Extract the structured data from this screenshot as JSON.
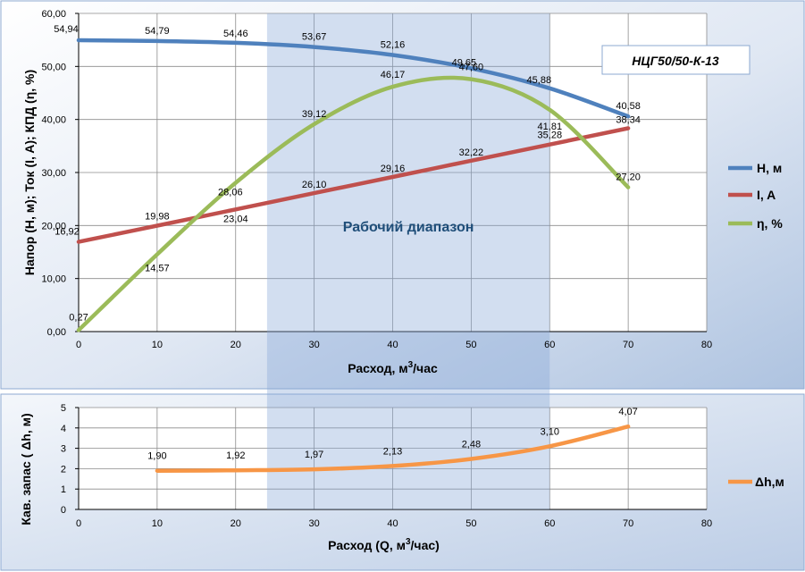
{
  "chart_data": [
    {
      "type": "line",
      "model_label": "НЦГ50/50-К-13",
      "range_label": "Рабочий диапазон",
      "working_range": [
        24,
        60
      ],
      "xlabel_main": "Расход, м",
      "xlabel_sup": "3",
      "xlabel_tail": "/час",
      "ylabel": "Напор (H, м); Ток (I, A); КПД (η, %)",
      "xlim": [
        0,
        80
      ],
      "ylim": [
        0,
        60
      ],
      "x_ticks": [
        "0",
        "10",
        "20",
        "30",
        "40",
        "50",
        "60",
        "70",
        "80"
      ],
      "y_ticks": [
        "0,00",
        "10,00",
        "20,00",
        "30,00",
        "40,00",
        "50,00",
        "60,00"
      ],
      "grid": true,
      "legend_position": "right",
      "series": [
        {
          "name": "H, м",
          "color": "#4f81bd",
          "x": [
            0,
            10,
            20,
            30,
            40,
            50,
            60,
            70
          ],
          "values": [
            54.94,
            54.79,
            54.46,
            53.67,
            52.16,
            49.65,
            45.88,
            40.58
          ],
          "labels": [
            "54,94",
            "54,79",
            "54,46",
            "53,67",
            "52,16",
            "49,65",
            "45,88",
            "40,58"
          ]
        },
        {
          "name": "I, A",
          "color": "#c0504d",
          "x": [
            0,
            10,
            20,
            30,
            40,
            50,
            60,
            70
          ],
          "values": [
            16.92,
            19.98,
            23.04,
            26.1,
            29.16,
            32.22,
            35.28,
            38.34
          ],
          "labels": [
            "16,92",
            "19,98",
            "23,04",
            "26,10",
            "29,16",
            "32,22",
            "35,28",
            "38,34"
          ]
        },
        {
          "name": "η, %",
          "color": "#9bbb59",
          "x": [
            0,
            10,
            20,
            30,
            40,
            50,
            60,
            70
          ],
          "values": [
            0.27,
            14.57,
            28.06,
            39.12,
            46.17,
            47.6,
            41.81,
            27.2
          ],
          "labels": [
            "0,27",
            "14,57",
            "28,06",
            "39,12",
            "46,17",
            "47,60",
            "41,81",
            "27,20"
          ]
        }
      ]
    },
    {
      "type": "line",
      "xlabel_main": "Расход  (Q, м",
      "xlabel_sup": "3",
      "xlabel_tail": "/час)",
      "ylabel": "Кав. запас ( Δh, м)",
      "xlim": [
        0,
        80
      ],
      "ylim": [
        0,
        5
      ],
      "x_ticks": [
        "0",
        "10",
        "20",
        "30",
        "40",
        "50",
        "60",
        "70",
        "80"
      ],
      "y_ticks": [
        "0",
        "1",
        "2",
        "3",
        "4",
        "5"
      ],
      "grid": true,
      "legend_position": "right",
      "series": [
        {
          "name": "Δh,м",
          "color": "#f79646",
          "x": [
            10,
            20,
            30,
            40,
            50,
            60,
            70
          ],
          "values": [
            1.9,
            1.92,
            1.97,
            2.13,
            2.48,
            3.1,
            4.07
          ],
          "labels": [
            "1,90",
            "1,92",
            "1,97",
            "2,13",
            "2,48",
            "3,10",
            "4,07"
          ]
        }
      ]
    }
  ]
}
